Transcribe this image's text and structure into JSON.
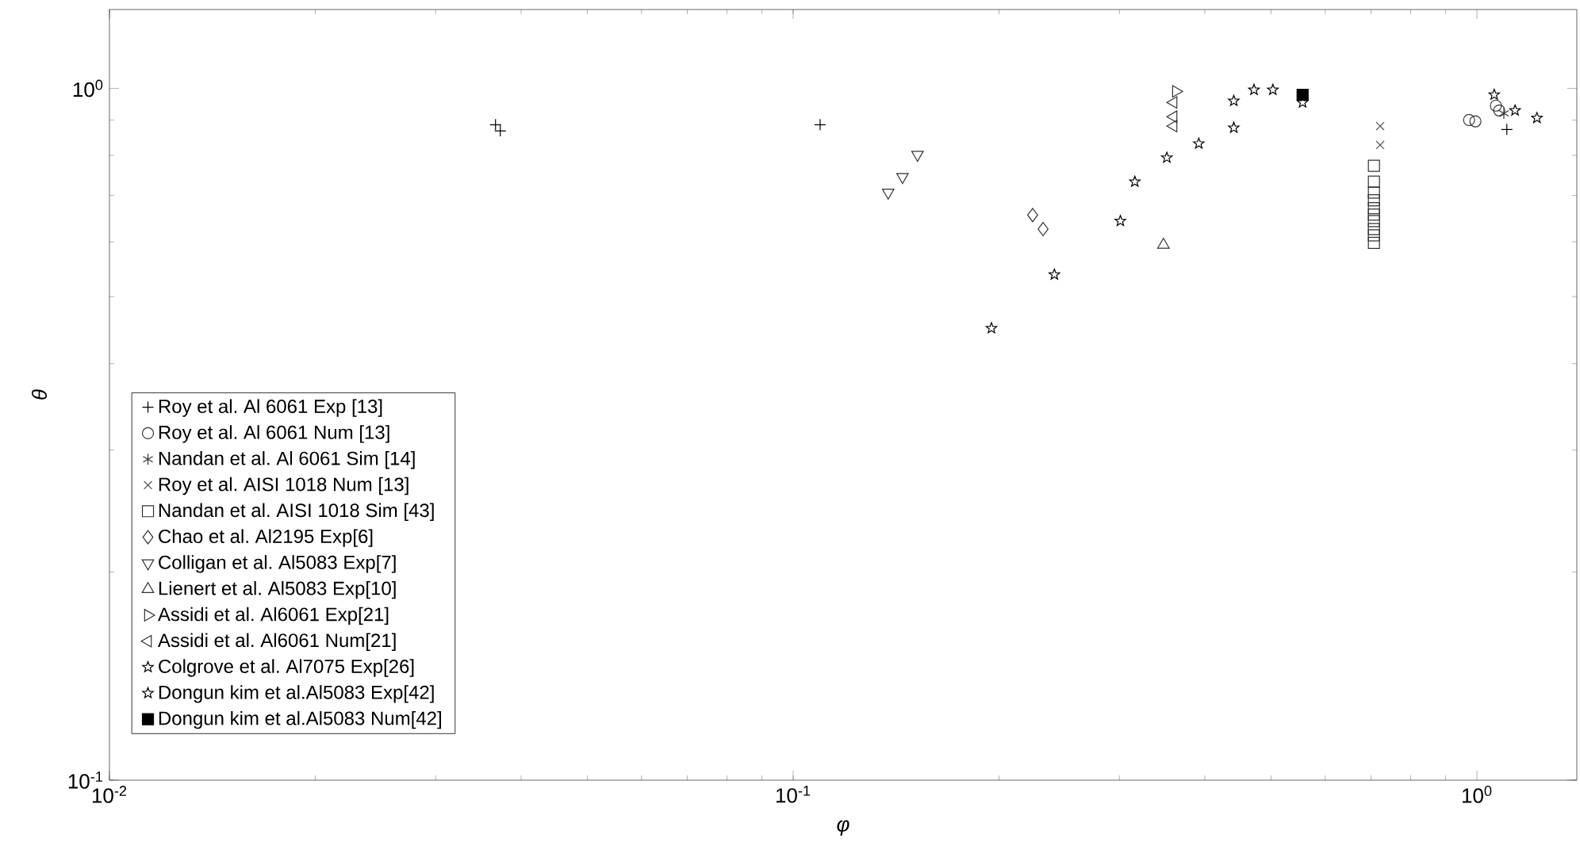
{
  "chart_data": {
    "type": "scatter",
    "xlabel": "φ",
    "ylabel": "θ",
    "log": "xy",
    "legend": "bottom left",
    "grid": false,
    "xlim": [
      0.01,
      1.4
    ],
    "ylim": [
      0.1,
      1.3
    ],
    "xticks": [
      {
        "value": 0.01,
        "label": "10$^{-2}$"
      },
      {
        "value": 0.1,
        "label": "10$^{-1}$"
      },
      {
        "value": 1,
        "label": "10$^{0}$"
      }
    ],
    "yticks": [
      {
        "value": 0.1,
        "label": "10$^{-1}$"
      },
      {
        "value": 1,
        "label": "10$^{0}$"
      }
    ],
    "series": [
      {
        "name": "Roy et al. Al 6061 Exp [13]",
        "color": "#000000",
        "marker": "plus",
        "x": [
          0.0367,
          0.0373,
          0.1095,
          1.106
        ],
        "values": [
          0.886,
          0.868,
          0.886,
          0.872
        ]
      },
      {
        "name": "Roy et al. Al 6061 Num [13]",
        "color": "#333333",
        "marker": "circle",
        "x": [
          0.974,
          0.995,
          1.066,
          1.078
        ],
        "values": [
          0.9,
          0.896,
          0.944,
          0.929
        ]
      },
      {
        "name": "Nandan et al. Al 6061 Sim [14]",
        "color": "#333333",
        "marker": "cross",
        "x": [
          1.095
        ],
        "values": [
          0.92
        ]
      },
      {
        "name": "Roy et al. AISI 1018 Num [13]",
        "color": "#555555",
        "marker": "x",
        "x": [
          0.722,
          0.722
        ],
        "values": [
          0.882,
          0.828
        ]
      },
      {
        "name": "Nandan et al. AISI 1018 Sim [43]",
        "color": "#333333",
        "marker": "square",
        "x": [
          0.707,
          0.707,
          0.707,
          0.707,
          0.707,
          0.707,
          0.707,
          0.707,
          0.707,
          0.707
        ],
        "values": [
          0.773,
          0.733,
          0.707,
          0.689,
          0.671,
          0.657,
          0.643,
          0.626,
          0.613,
          0.598
        ]
      },
      {
        "name": "Chao et al. Al2195 Exp[6]",
        "color": "#333333",
        "marker": "diamond",
        "x": [
          0.224,
          0.232
        ],
        "values": [
          0.656,
          0.626
        ]
      },
      {
        "name": "Colligan et al. Al5083 Exp[7]",
        "color": "#333333",
        "marker": "triangle-down",
        "x": [
          0.152,
          0.1445,
          0.1377
        ],
        "values": [
          0.802,
          0.745,
          0.707
        ]
      },
      {
        "name": "Lienert et al. Al5083 Exp[10]",
        "color": "#333333",
        "marker": "triangle",
        "x": [
          0.348
        ],
        "values": [
          0.594
        ]
      },
      {
        "name": "Assidi et al. Al6061 Exp[21]",
        "color": "#333333",
        "marker": "triangle-right",
        "x": [
          0.363
        ],
        "values": [
          0.99
        ]
      },
      {
        "name": "Assidi et al. Al6061 Num[21]",
        "color": "#333333",
        "marker": "triangle-left",
        "x": [
          0.36,
          0.36,
          0.36
        ],
        "values": [
          0.954,
          0.91,
          0.882
        ]
      },
      {
        "name": "Colgrove et al. Al7075 Exp[26]",
        "color": "#000000",
        "marker": "star",
        "x": [
          0.195,
          0.241,
          0.301,
          0.316,
          0.352,
          0.392,
          0.441,
          0.441,
          0.472,
          0.503,
          1.06,
          1.137,
          1.224
        ],
        "values": [
          0.45,
          0.538,
          0.643,
          0.733,
          0.794,
          0.832,
          0.877,
          0.959,
          0.995,
          0.995,
          0.979,
          0.929,
          0.906
        ]
      },
      {
        "name": "Dongun kim et al.Al5083 Exp[42]",
        "color": "#000000",
        "marker": "star",
        "x": [
          0.556
        ],
        "values": [
          0.954
        ]
      },
      {
        "name": "Dongun kim et al.Al5083 Num[42]",
        "color": "#000000",
        "marker": "square-filled",
        "x": [
          0.556
        ],
        "values": [
          0.979
        ]
      }
    ]
  }
}
